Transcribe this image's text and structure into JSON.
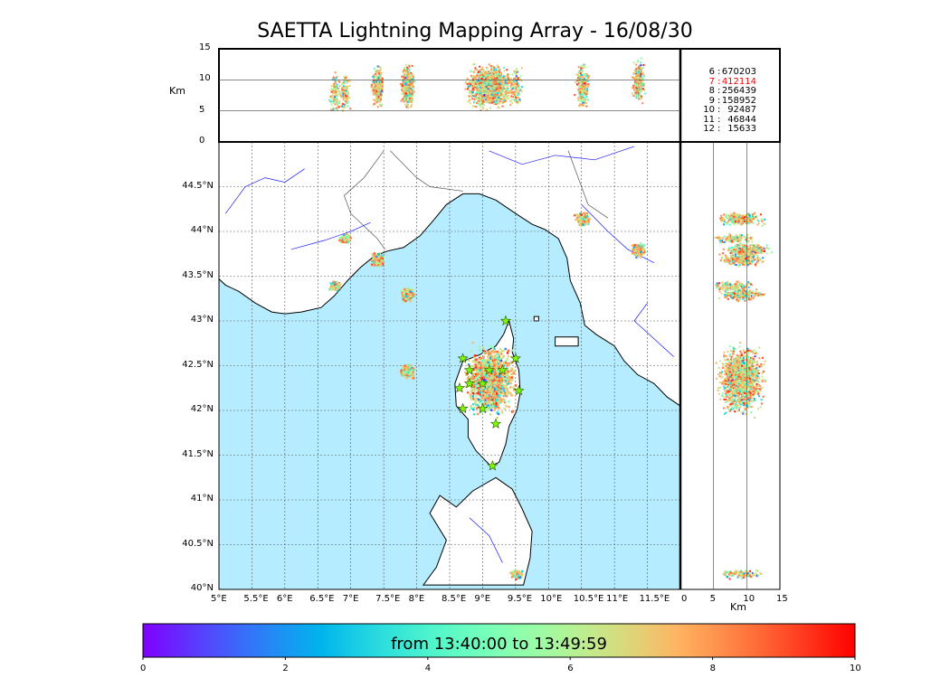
{
  "title": "SAETTA Lightning Mapping Array - 16/08/30",
  "colors": {
    "sea": "#b6ecff",
    "land": "#ffffff",
    "coastline": "#000000",
    "rivers": "#1a1aff",
    "borders": "#555555",
    "grid": "#555555",
    "stations": "#7cfc00",
    "highlight": "#ff0000"
  },
  "top_panel": {
    "ylabel": "Km",
    "yticks": [
      "15",
      "10",
      "5",
      "0"
    ]
  },
  "right_panel": {
    "xlabel": "Km",
    "xticks": [
      "0",
      "5",
      "10",
      "15"
    ]
  },
  "map": {
    "lon_ticks": [
      "5°E",
      "5.5°E",
      "6°E",
      "6.5°E",
      "7°E",
      "7.5°E",
      "8°E",
      "8.5°E",
      "9°E",
      "9.5°E",
      "10°E",
      "10.5°E",
      "11°E",
      "11.5°E"
    ],
    "lat_ticks": [
      "44.5°N",
      "44°N",
      "43.5°N",
      "43°N",
      "42.5°N",
      "42°N",
      "41.5°N",
      "41°N",
      "40.5°N",
      "40°N"
    ]
  },
  "counts": [
    {
      "key": "6",
      "value": "670203",
      "highlight": false
    },
    {
      "key": "7",
      "value": "412114",
      "highlight": true
    },
    {
      "key": "8",
      "value": "256439",
      "highlight": false
    },
    {
      "key": "9",
      "value": "158952",
      "highlight": false
    },
    {
      "key": "10",
      "value": "92487",
      "highlight": false
    },
    {
      "key": "11",
      "value": "46844",
      "highlight": false
    },
    {
      "key": "12",
      "value": "15633",
      "highlight": false
    }
  ],
  "colorbar": {
    "label": "from 13:40:00 to 13:49:59",
    "ticks": [
      "0",
      "2",
      "4",
      "6",
      "8",
      "10"
    ],
    "colormap": "rainbow"
  },
  "chart_data": {
    "type": "scatter",
    "title": "SAETTA Lightning Mapping Array - 16/08/30",
    "description": "lightning source points (lon, lat, altitude km) coloured by time in minutes since 13:40:00",
    "x_range": [
      5.0,
      12.0
    ],
    "y_range": [
      40.0,
      45.0
    ],
    "z_range_km": [
      0,
      15
    ],
    "color_range_min": [
      0,
      10
    ],
    "clusters": [
      {
        "lon": 9.1,
        "lat": 42.35,
        "alt_km": 9,
        "density": "very high"
      },
      {
        "lon": 7.85,
        "lat": 42.45,
        "alt_km": 9,
        "density": "medium"
      },
      {
        "lon": 7.85,
        "lat": 43.3,
        "alt_km": 9,
        "density": "medium"
      },
      {
        "lon": 7.4,
        "lat": 43.7,
        "alt_km": 9,
        "density": "medium"
      },
      {
        "lon": 6.75,
        "lat": 43.4,
        "alt_km": 8,
        "density": "low"
      },
      {
        "lon": 6.9,
        "lat": 43.93,
        "alt_km": 8,
        "density": "low"
      },
      {
        "lon": 10.5,
        "lat": 44.15,
        "alt_km": 9,
        "density": "medium"
      },
      {
        "lon": 11.35,
        "lat": 43.8,
        "alt_km": 10,
        "density": "medium"
      },
      {
        "lon": 9.5,
        "lat": 40.18,
        "alt_km": 9,
        "density": "low"
      }
    ],
    "stations_lonlat": [
      [
        9.35,
        43.0
      ],
      [
        8.7,
        42.58
      ],
      [
        9.5,
        42.58
      ],
      [
        8.8,
        42.45
      ],
      [
        9.1,
        42.45
      ],
      [
        9.3,
        42.45
      ],
      [
        8.65,
        42.25
      ],
      [
        8.8,
        42.3
      ],
      [
        9.0,
        42.3
      ],
      [
        9.55,
        42.22
      ],
      [
        8.7,
        42.02
      ],
      [
        9.0,
        42.02
      ],
      [
        9.2,
        41.85
      ],
      [
        9.15,
        41.38
      ]
    ],
    "altitude_counts": {
      "6": 670203,
      "7": 412114,
      "8": 256439,
      "9": 158952,
      "10": 92487,
      "11": 46844,
      "12": 15633
    }
  }
}
